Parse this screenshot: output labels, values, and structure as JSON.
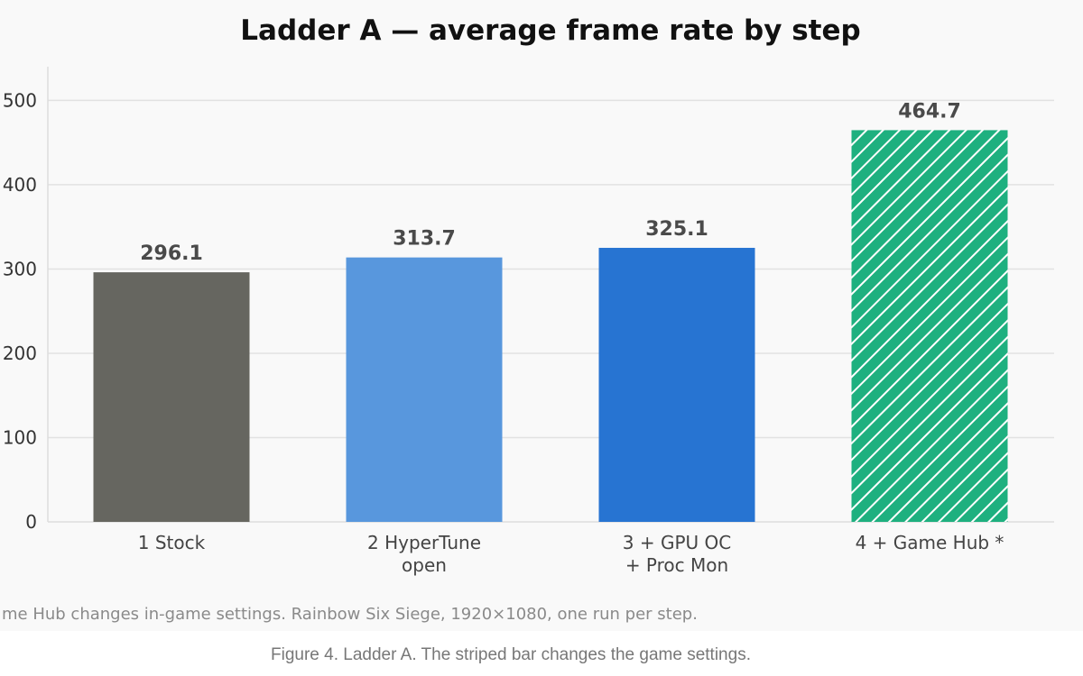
{
  "caption": "Figure 4. Ladder A. The striped bar changes the game settings.",
  "chart_data": {
    "type": "bar",
    "title": "Ladder A — average frame rate by step",
    "xlabel": "",
    "ylabel": "",
    "ylim": [
      0,
      540
    ],
    "yticks": [
      0,
      100,
      200,
      300,
      400,
      500
    ],
    "ytick_labels": [
      "0",
      "100",
      "200",
      "300",
      "400",
      "500"
    ],
    "grid": true,
    "categories": [
      [
        "1  Stock"
      ],
      [
        "2  HyperTune",
        "open"
      ],
      [
        "3  + GPU OC",
        "+ Proc Mon"
      ],
      [
        "4  + Game Hub *"
      ]
    ],
    "values": [
      296.1,
      313.7,
      325.1,
      464.7
    ],
    "value_labels": [
      "296.1",
      "313.7",
      "325.1",
      "464.7"
    ],
    "colors": [
      "#666660",
      "#5897dd",
      "#2774d2",
      "#1eb07f"
    ],
    "hatched": [
      false,
      false,
      false,
      true
    ],
    "footnote": "me Hub changes in-game settings. Rainbow Six Siege, 1920×1080, one run per step."
  }
}
